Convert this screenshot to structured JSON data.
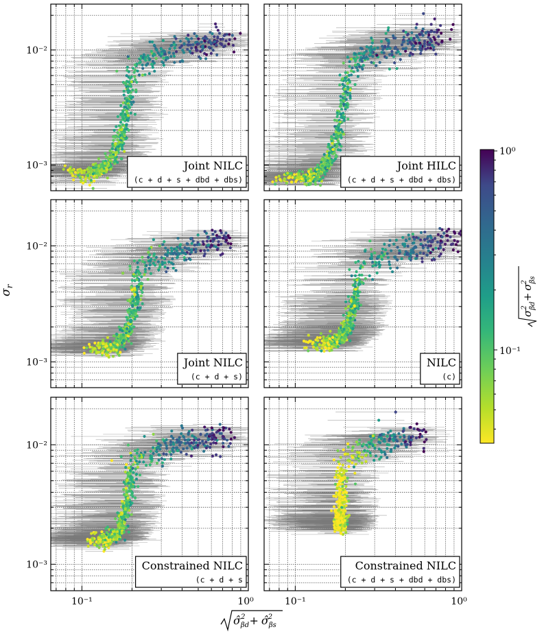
{
  "figure": {
    "y_axis_label": "σ",
    "y_axis_label_sub": "r",
    "x_axis_label_parts": {
      "base": "√",
      "term1": "σ̂",
      "sub1": "βd",
      "sup": "2",
      "plus": "+",
      "term2": "σ̂",
      "sub2": "βs"
    },
    "colorbar_label": "√(σ²_βd + σ²_βs)",
    "colorbar_ticks": [
      "10⁰",
      "10⁻¹"
    ],
    "x_ticks": [
      "10⁻¹",
      "10⁰"
    ],
    "y_ticks": [
      "10⁻²",
      "10⁻³"
    ]
  },
  "chart_data": [
    {
      "type": "scatter",
      "panel": "top-left",
      "legend_line1": "Joint NILC",
      "legend_line2": "(c + d + s + dbd + dbs)",
      "xscale": "log",
      "yscale": "log",
      "xlim": [
        0.065,
        1.0
      ],
      "ylim": [
        0.0006,
        0.025
      ],
      "trend": {
        "x_start": 0.075,
        "y_start": 0.00085,
        "x_knee": 0.2,
        "x_top": 0.8,
        "y_top": 0.011
      },
      "colormap": "viridis",
      "color_range": [
        0.035,
        1.0
      ],
      "n_points": 620,
      "grid": true
    },
    {
      "type": "scatter",
      "panel": "top-right",
      "legend_line1": "Joint HILC",
      "legend_line2": "(c + d + s + dbd + dbs)",
      "xscale": "log",
      "yscale": "log",
      "xlim": [
        0.065,
        1.0
      ],
      "ylim": [
        0.0006,
        0.025
      ],
      "trend": {
        "x_start": 0.07,
        "y_start": 0.00075,
        "x_knee": 0.21,
        "x_top": 0.8,
        "y_top": 0.012
      },
      "colormap": "viridis",
      "color_range": [
        0.035,
        1.0
      ],
      "n_points": 620,
      "grid": true
    },
    {
      "type": "scatter",
      "panel": "middle-left",
      "legend_line1": "Joint NILC",
      "legend_line2": "(c + d + s)",
      "xscale": "log",
      "yscale": "log",
      "xlim": [
        0.065,
        1.0
      ],
      "ylim": [
        0.0006,
        0.025
      ],
      "trend": {
        "x_start": 0.1,
        "y_start": 0.0013,
        "x_knee": 0.22,
        "x_top": 0.75,
        "y_top": 0.01
      },
      "colormap": "viridis",
      "color_range": [
        0.035,
        1.0
      ],
      "n_points": 560,
      "grid": true
    },
    {
      "type": "scatter",
      "panel": "middle-right",
      "legend_line1": "NILC",
      "legend_line2": "(c)",
      "xscale": "log",
      "yscale": "log",
      "xlim": [
        0.065,
        1.0
      ],
      "ylim": [
        0.0006,
        0.025
      ],
      "trend": {
        "x_start": 0.11,
        "y_start": 0.0014,
        "x_knee": 0.24,
        "x_top": 0.9,
        "y_top": 0.01
      },
      "colormap": "viridis",
      "color_range": [
        0.035,
        1.0
      ],
      "n_points": 600,
      "grid": true
    },
    {
      "type": "scatter",
      "panel": "bottom-left",
      "legend_line1": "Constrained NILC",
      "legend_line2": "(c + d + s",
      "xscale": "log",
      "yscale": "log",
      "xlim": [
        0.065,
        1.0
      ],
      "ylim": [
        0.0006,
        0.025
      ],
      "trend": {
        "x_start": 0.105,
        "y_start": 0.0016,
        "x_knee": 0.2,
        "x_top": 0.75,
        "y_top": 0.011
      },
      "colormap": "viridis",
      "color_range": [
        0.035,
        1.0
      ],
      "n_points": 640,
      "grid": true
    },
    {
      "type": "scatter",
      "panel": "bottom-right",
      "legend_line1": "Constrained NILC",
      "legend_line2": "(c + d + s + dbd + dbs)",
      "xscale": "log",
      "yscale": "log",
      "xlim": [
        0.065,
        1.0
      ],
      "ylim": [
        0.0006,
        0.025
      ],
      "trend": {
        "x_start": 0.185,
        "y_start": 0.0021,
        "x_knee": 0.19,
        "x_top": 0.55,
        "y_top": 0.011
      },
      "colormap": "viridis",
      "color_range": [
        0.035,
        1.0
      ],
      "n_points": 520,
      "grid": true
    }
  ]
}
